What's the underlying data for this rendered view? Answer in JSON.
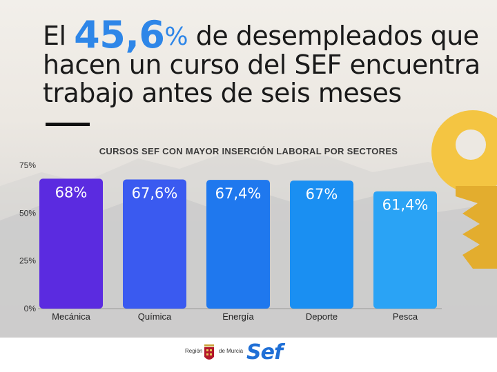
{
  "headline": {
    "lead": "El",
    "big": "45,6",
    "pct": "%",
    "line1_rest": "de desempleados que",
    "line2": "hacen un curso del SEF encuentra",
    "line3": "trabajo antes de seis meses"
  },
  "colors": {
    "accent": "#2e86e8",
    "bars": [
      "#5b2be0",
      "#3a5af0",
      "#1f78ee",
      "#1a8ff2",
      "#2aa3f5"
    ],
    "key": "#f4c542"
  },
  "chart_data": {
    "type": "bar",
    "title": "CURSOS SEF CON MAYOR INSERCIÓN LABORAL POR SECTORES",
    "categories": [
      "Mecánica",
      "Química",
      "Energía",
      "Deporte",
      "Pesca"
    ],
    "values": [
      68,
      67.6,
      67.4,
      67,
      61.4
    ],
    "data_labels": [
      "68%",
      "67,6%",
      "67,4%",
      "67%",
      "61,4%"
    ],
    "yticks": [
      "0%",
      "25%",
      "50%",
      "75%"
    ],
    "ytick_values": [
      0,
      25,
      50,
      75
    ],
    "ylim": [
      0,
      75
    ],
    "grid": false,
    "legend": "none"
  },
  "footer": {
    "region_left": "Región",
    "region_right": "de Murcia",
    "logo": "Sef"
  }
}
